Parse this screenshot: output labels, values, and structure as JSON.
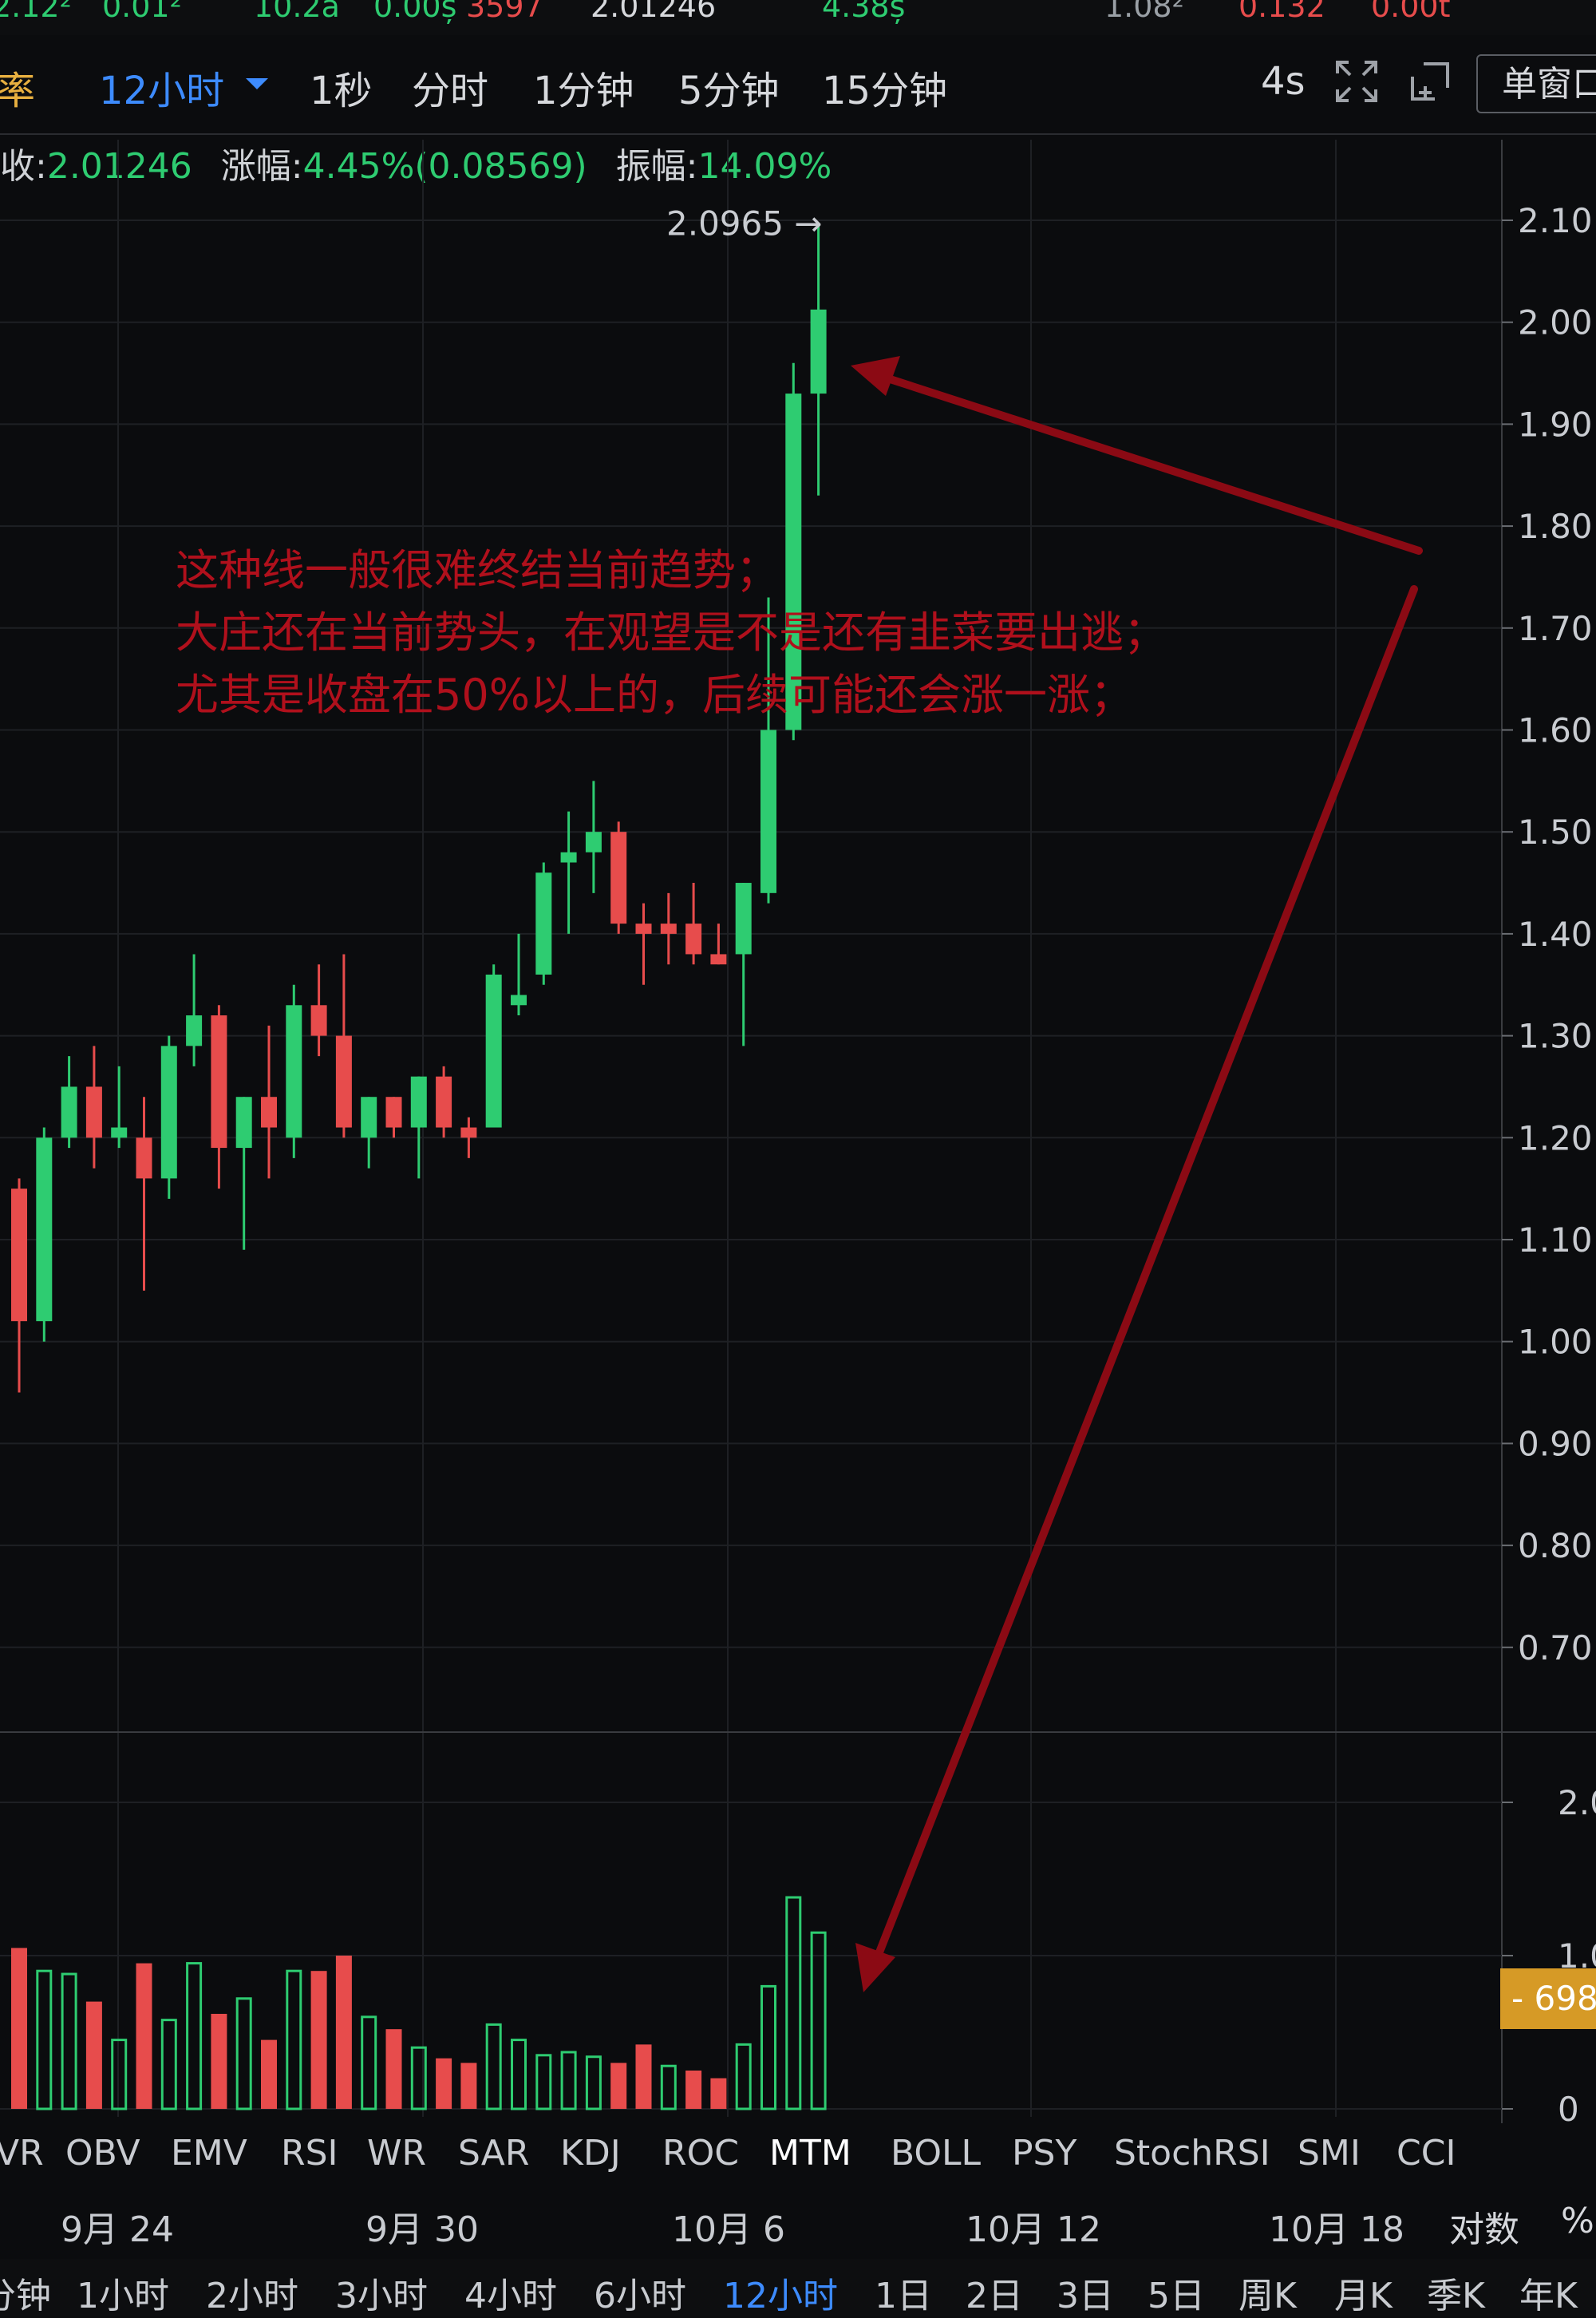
{
  "top_strip": [
    "2.12²",
    "0.01²",
    "10.2ã",
    "0.00ș",
    "3597",
    "2.01246",
    "4.38ș",
    "1.08²",
    "0.132",
    "0.00t"
  ],
  "toolbar": {
    "left_label": "率",
    "intervals": [
      {
        "label": "12小时",
        "active": true
      },
      {
        "label": "1秒"
      },
      {
        "label": "分时"
      },
      {
        "label": "1分钟"
      },
      {
        "label": "5分钟"
      },
      {
        "label": "15分钟"
      }
    ],
    "refresh": "4s",
    "single_window": "单窗口"
  },
  "info": {
    "close_label": "收:",
    "close_value": "2.01246",
    "change_label": "涨幅:",
    "change_value": "4.45%(0.08569)",
    "amplitude_label": "振幅:",
    "amplitude_value": "14.09%"
  },
  "annotation": {
    "lines": [
      "这种线一般很难终结当前趋势；",
      "大庄还在当前势头，在观望是不是还有韭菜要出逃；",
      "尤其是收盘在50%以上的，后续可能还会涨一涨；"
    ]
  },
  "high_marker": "2.0965 →",
  "volume_tag": "- 698",
  "indicators": [
    {
      "label": "VR"
    },
    {
      "label": "OBV"
    },
    {
      "label": "EMV"
    },
    {
      "label": "RSI"
    },
    {
      "label": "WR"
    },
    {
      "label": "SAR"
    },
    {
      "label": "KDJ"
    },
    {
      "label": "ROC"
    },
    {
      "label": "MTM",
      "active": true
    },
    {
      "label": "BOLL"
    },
    {
      "label": "PSY"
    },
    {
      "label": "StochRSI"
    },
    {
      "label": "SMI"
    },
    {
      "label": "CCI"
    }
  ],
  "xaxis_extra": [
    "对数",
    "%"
  ],
  "periods": [
    {
      "label": "分钟"
    },
    {
      "label": "1小时"
    },
    {
      "label": "2小时"
    },
    {
      "label": "3小时"
    },
    {
      "label": "4小时"
    },
    {
      "label": "6小时"
    },
    {
      "label": "12小时",
      "active": true
    },
    {
      "label": "1日"
    },
    {
      "label": "2日"
    },
    {
      "label": "3日"
    },
    {
      "label": "5日"
    },
    {
      "label": "周K"
    },
    {
      "label": "月K"
    },
    {
      "label": "季K"
    },
    {
      "label": "年K"
    }
  ],
  "colors": {
    "up": "#2ecc71",
    "down": "#e74c4c",
    "accent": "#3d8bfd",
    "annotation": "#b0101c",
    "tag": "#d69a26"
  },
  "chart_data": {
    "type": "candlestick",
    "x_tick_labels": [
      "9月 24",
      "9月 30",
      "10月 6",
      "10月 12",
      "10月 18"
    ],
    "y_tick_labels": [
      "2.10",
      "2.00",
      "1.90",
      "1.80",
      "1.70",
      "1.60",
      "1.50",
      "1.40",
      "1.30",
      "1.20",
      "1.10",
      "1.00",
      "0.90",
      "0.80",
      "0.70"
    ],
    "ylim": [
      0.7,
      2.1
    ],
    "volume_tick_labels": [
      "2.0",
      "1.0",
      "0"
    ],
    "candles": [
      {
        "o": 1.15,
        "h": 1.16,
        "l": 0.95,
        "c": 1.02
      },
      {
        "o": 1.02,
        "h": 1.21,
        "l": 1.0,
        "c": 1.2
      },
      {
        "o": 1.2,
        "h": 1.28,
        "l": 1.19,
        "c": 1.25
      },
      {
        "o": 1.25,
        "h": 1.29,
        "l": 1.17,
        "c": 1.2
      },
      {
        "o": 1.2,
        "h": 1.27,
        "l": 1.19,
        "c": 1.21
      },
      {
        "o": 1.2,
        "h": 1.24,
        "l": 1.05,
        "c": 1.16
      },
      {
        "o": 1.16,
        "h": 1.3,
        "l": 1.14,
        "c": 1.29
      },
      {
        "o": 1.29,
        "h": 1.38,
        "l": 1.27,
        "c": 1.32
      },
      {
        "o": 1.32,
        "h": 1.33,
        "l": 1.15,
        "c": 1.19
      },
      {
        "o": 1.19,
        "h": 1.24,
        "l": 1.09,
        "c": 1.24
      },
      {
        "o": 1.24,
        "h": 1.31,
        "l": 1.16,
        "c": 1.21
      },
      {
        "o": 1.2,
        "h": 1.35,
        "l": 1.18,
        "c": 1.33
      },
      {
        "o": 1.33,
        "h": 1.37,
        "l": 1.28,
        "c": 1.3
      },
      {
        "o": 1.3,
        "h": 1.38,
        "l": 1.2,
        "c": 1.21
      },
      {
        "o": 1.2,
        "h": 1.24,
        "l": 1.17,
        "c": 1.24
      },
      {
        "o": 1.24,
        "h": 1.24,
        "l": 1.2,
        "c": 1.21
      },
      {
        "o": 1.21,
        "h": 1.26,
        "l": 1.16,
        "c": 1.26
      },
      {
        "o": 1.26,
        "h": 1.27,
        "l": 1.2,
        "c": 1.21
      },
      {
        "o": 1.21,
        "h": 1.22,
        "l": 1.18,
        "c": 1.2
      },
      {
        "o": 1.21,
        "h": 1.37,
        "l": 1.21,
        "c": 1.36
      },
      {
        "o": 1.33,
        "h": 1.4,
        "l": 1.32,
        "c": 1.34
      },
      {
        "o": 1.36,
        "h": 1.47,
        "l": 1.35,
        "c": 1.46
      },
      {
        "o": 1.47,
        "h": 1.52,
        "l": 1.4,
        "c": 1.48
      },
      {
        "o": 1.48,
        "h": 1.55,
        "l": 1.44,
        "c": 1.5
      },
      {
        "o": 1.5,
        "h": 1.51,
        "l": 1.4,
        "c": 1.41
      },
      {
        "o": 1.41,
        "h": 1.43,
        "l": 1.35,
        "c": 1.4
      },
      {
        "o": 1.41,
        "h": 1.44,
        "l": 1.37,
        "c": 1.4
      },
      {
        "o": 1.41,
        "h": 1.45,
        "l": 1.37,
        "c": 1.38
      },
      {
        "o": 1.38,
        "h": 1.41,
        "l": 1.37,
        "c": 1.37
      },
      {
        "o": 1.38,
        "h": 1.45,
        "l": 1.29,
        "c": 1.45
      },
      {
        "o": 1.44,
        "h": 1.73,
        "l": 1.43,
        "c": 1.6
      },
      {
        "o": 1.6,
        "h": 1.96,
        "l": 1.59,
        "c": 1.93
      },
      {
        "o": 1.93,
        "h": 2.0965,
        "l": 1.83,
        "c": 2.01246
      }
    ],
    "volume": [
      {
        "v": 1.05,
        "up": false
      },
      {
        "v": 0.9,
        "up": true
      },
      {
        "v": 0.88,
        "up": true
      },
      {
        "v": 0.7,
        "up": false
      },
      {
        "v": 0.45,
        "up": true
      },
      {
        "v": 0.95,
        "up": false
      },
      {
        "v": 0.58,
        "up": true
      },
      {
        "v": 0.95,
        "up": true
      },
      {
        "v": 0.62,
        "up": false
      },
      {
        "v": 0.72,
        "up": true
      },
      {
        "v": 0.45,
        "up": false
      },
      {
        "v": 0.9,
        "up": true
      },
      {
        "v": 0.9,
        "up": false
      },
      {
        "v": 1.0,
        "up": false
      },
      {
        "v": 0.6,
        "up": true
      },
      {
        "v": 0.52,
        "up": false
      },
      {
        "v": 0.4,
        "up": true
      },
      {
        "v": 0.33,
        "up": false
      },
      {
        "v": 0.3,
        "up": false
      },
      {
        "v": 0.55,
        "up": true
      },
      {
        "v": 0.45,
        "up": true
      },
      {
        "v": 0.35,
        "up": true
      },
      {
        "v": 0.37,
        "up": true
      },
      {
        "v": 0.34,
        "up": true
      },
      {
        "v": 0.3,
        "up": false
      },
      {
        "v": 0.42,
        "up": false
      },
      {
        "v": 0.28,
        "up": true
      },
      {
        "v": 0.25,
        "up": false
      },
      {
        "v": 0.2,
        "up": false
      },
      {
        "v": 0.42,
        "up": true
      },
      {
        "v": 0.8,
        "up": true
      },
      {
        "v": 1.38,
        "up": true
      },
      {
        "v": 1.15,
        "up": true
      }
    ]
  }
}
